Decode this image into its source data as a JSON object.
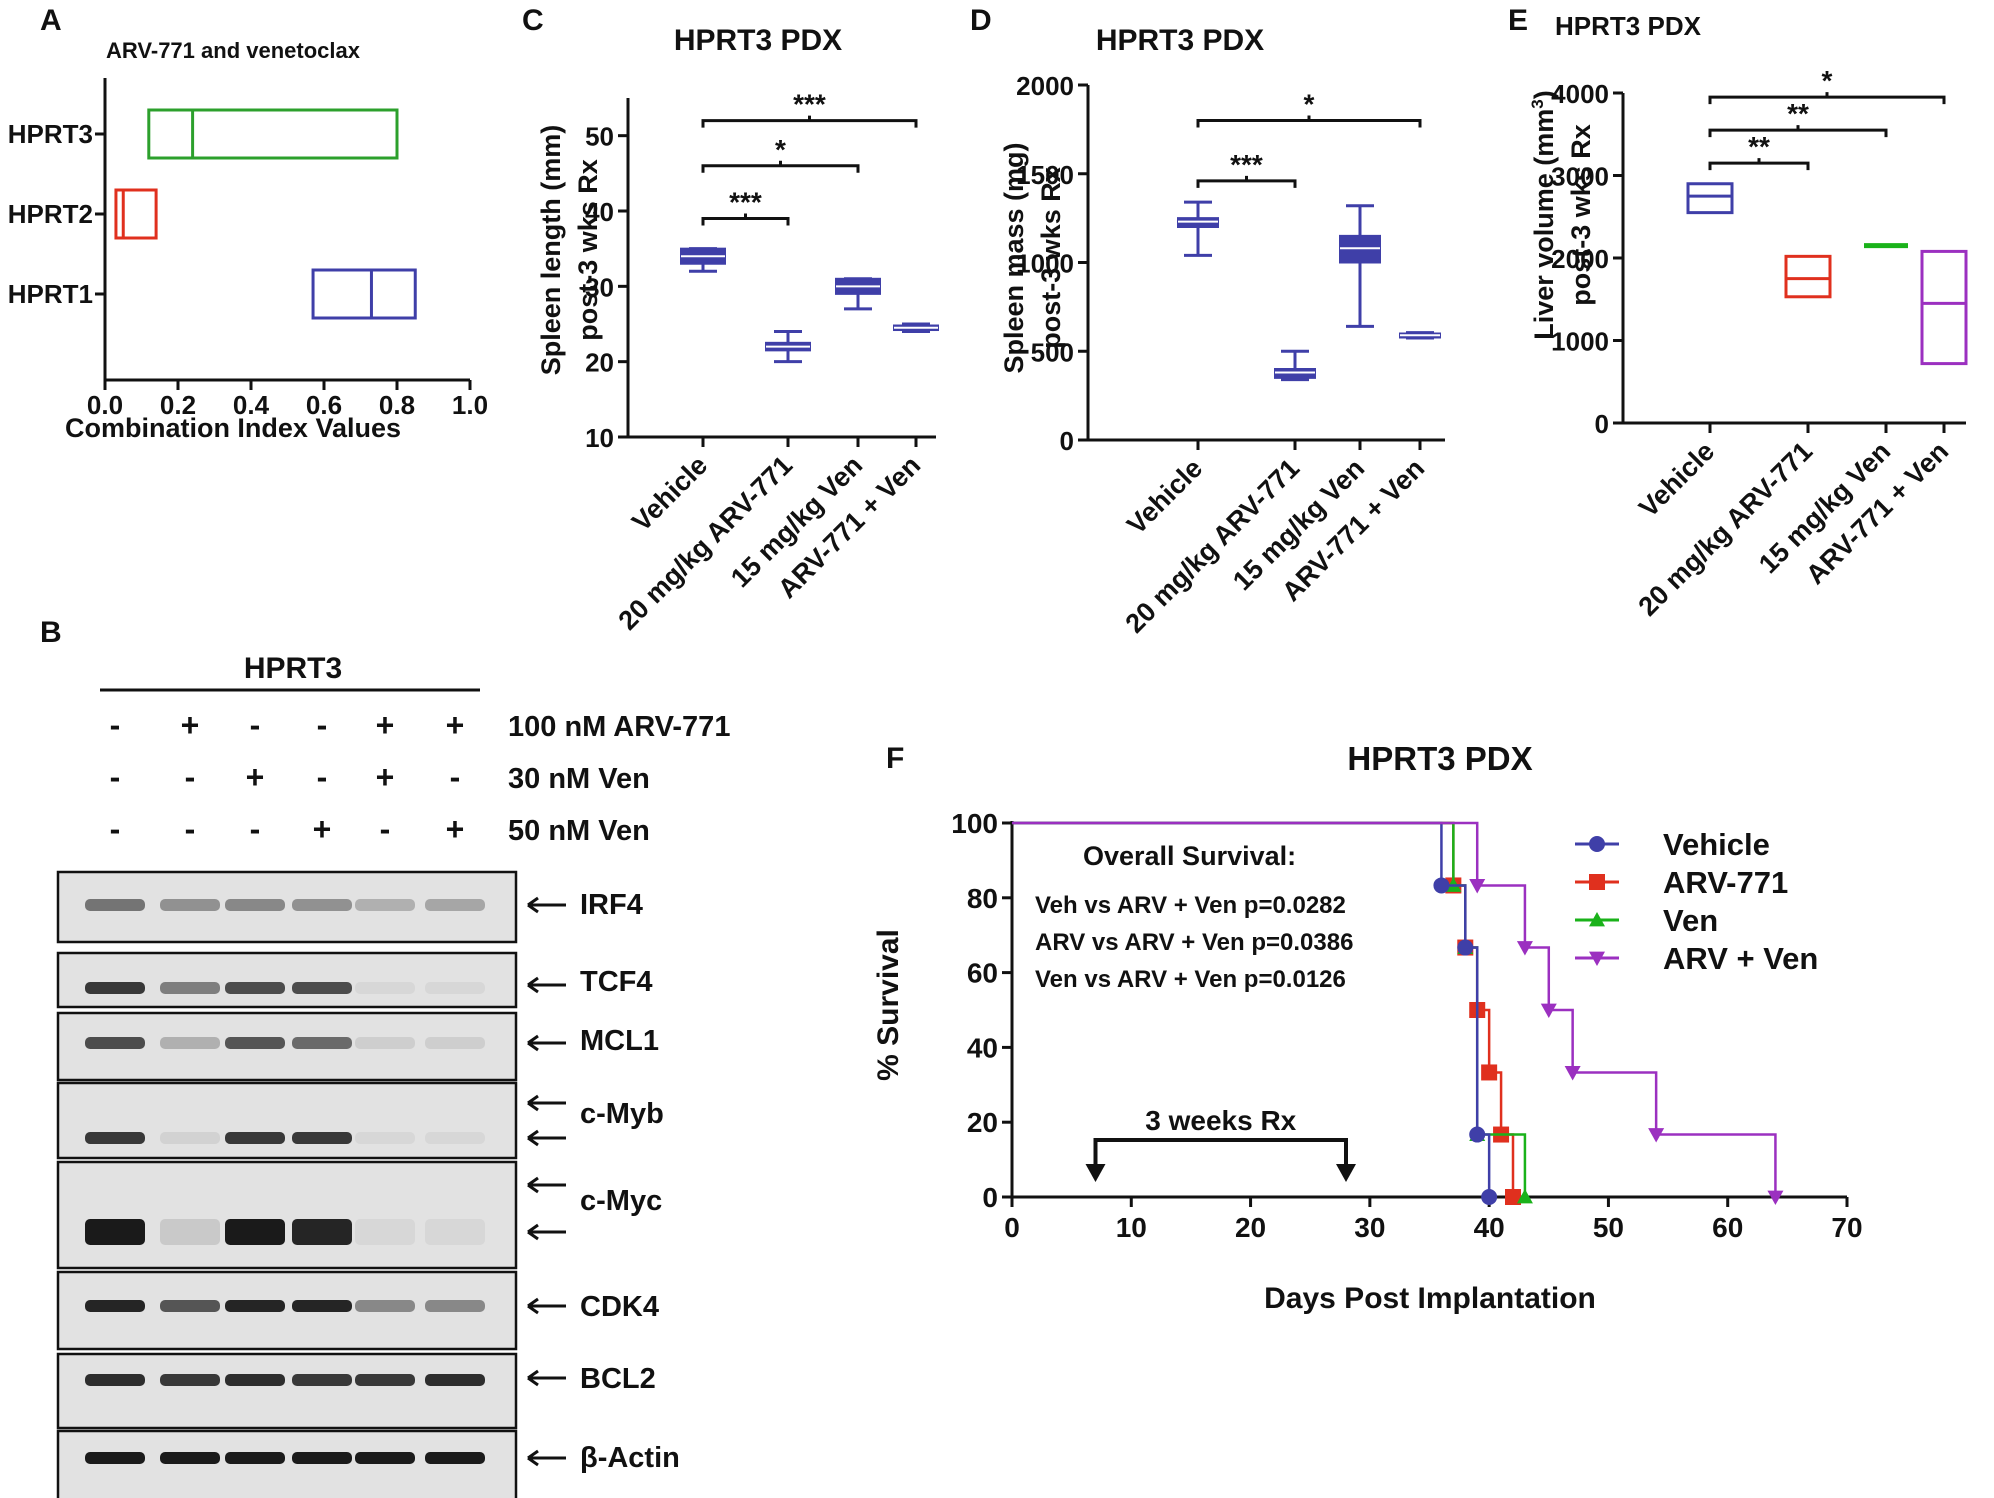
{
  "chart_data": [
    {
      "panel": "A",
      "type": "floating-box",
      "title": "ARV-771 and venetoclax",
      "xlabel": "Combination Index Values",
      "xlim": [
        0.0,
        1.0
      ],
      "xticks": [
        "0.0",
        "0.2",
        "0.4",
        "0.6",
        "0.8",
        "1.0"
      ],
      "categories": [
        "HPRT3",
        "HPRT2",
        "HPRT1"
      ],
      "boxes": [
        {
          "category": "HPRT3",
          "min": 0.12,
          "line": 0.24,
          "max": 0.8,
          "color": "#2ca02c"
        },
        {
          "category": "HPRT2",
          "min": 0.03,
          "line": 0.05,
          "max": 0.14,
          "color": "#e0301e"
        },
        {
          "category": "HPRT1",
          "min": 0.57,
          "line": 0.73,
          "max": 0.85,
          "color": "#3f3fa8"
        }
      ]
    },
    {
      "panel": "C",
      "type": "box",
      "title": "HPRT3 PDX",
      "ylabel_line1": "Spleen length (mm)",
      "ylabel_line2": "post-3 wks  Rx",
      "ylim": [
        10,
        55
      ],
      "yticks": [
        "10",
        "20",
        "30",
        "40",
        "50"
      ],
      "categories": [
        "Vehicle",
        "20 mg/kg ARV-771",
        "15 mg/kg Ven",
        "ARV-771 + Ven"
      ],
      "boxes": [
        {
          "min": 32,
          "q1": 33,
          "median": 34,
          "q3": 35,
          "max": 35
        },
        {
          "min": 20,
          "q1": 21.5,
          "median": 22,
          "q3": 22.5,
          "max": 24
        },
        {
          "min": 27,
          "q1": 29,
          "median": 30,
          "q3": 31,
          "max": 31
        },
        {
          "min": 24,
          "q1": 24.2,
          "median": 24.5,
          "q3": 24.8,
          "max": 25
        }
      ],
      "brackets": [
        {
          "text": "***",
          "from": 0,
          "to": 1,
          "y": 39
        },
        {
          "text": "*",
          "from": 0,
          "to": 2,
          "y": 46
        },
        {
          "text": "***",
          "from": 0,
          "to": 3,
          "y": 52
        }
      ]
    },
    {
      "panel": "D",
      "type": "box",
      "title": "HPRT3 PDX",
      "ylabel_line1": "Spleen mass (mg)",
      "ylabel_line2": "post-3 wks Rx",
      "ylim": [
        0,
        2000
      ],
      "yticks": [
        "0",
        "500",
        "1000",
        "1500",
        "2000"
      ],
      "categories": [
        "Vehicle",
        "20 mg/kg ARV-771",
        "15 mg/kg Ven",
        "ARV-771 + Ven"
      ],
      "boxes": [
        {
          "min": 1040,
          "q1": 1200,
          "median": 1230,
          "q3": 1250,
          "max": 1340
        },
        {
          "min": 340,
          "q1": 350,
          "median": 380,
          "q3": 400,
          "max": 500
        },
        {
          "min": 640,
          "q1": 1000,
          "median": 1080,
          "q3": 1150,
          "max": 1320
        },
        {
          "min": 575,
          "q1": 580,
          "median": 590,
          "q3": 600,
          "max": 605
        }
      ],
      "brackets": [
        {
          "text": "***",
          "from": 0,
          "to": 1,
          "y": 1460
        },
        {
          "text": "*",
          "from": 0,
          "to": 3,
          "y": 1800
        }
      ]
    },
    {
      "panel": "E",
      "type": "floating-box",
      "title": "HPRT3 PDX",
      "ylabel_line1": "Liver volume (mm",
      "ylabel_sup": "3",
      "ylabel_tail": ")",
      "ylabel_line2": "post-3 wks Rx",
      "ylim": [
        0,
        4000
      ],
      "yticks": [
        "0",
        "1000",
        "2000",
        "3000",
        "4000"
      ],
      "categories": [
        "Vehicle",
        "20 mg/kg ARV-771",
        "15 mg/kg Ven",
        "ARV-771 + Ven"
      ],
      "boxes": [
        {
          "min": 2550,
          "line": 2750,
          "max": 2900,
          "color": "#3f3fa8"
        },
        {
          "min": 1530,
          "line": 1750,
          "max": 2020,
          "color": "#e0301e"
        },
        {
          "min": 2130,
          "line": 2150,
          "max": 2150,
          "color": "#1ab21a"
        },
        {
          "min": 720,
          "line": 1450,
          "max": 2080,
          "color": "#9b30c0"
        }
      ],
      "brackets": [
        {
          "text": "**",
          "from": 0,
          "to": 1,
          "y": 3150
        },
        {
          "text": "**",
          "from": 0,
          "to": 2,
          "y": 3550
        },
        {
          "text": "*",
          "from": 0,
          "to": 3,
          "y": 3950
        }
      ]
    },
    {
      "panel": "F",
      "type": "line",
      "title": "HPRT3 PDX",
      "xlabel": "Days Post Implantation",
      "ylabel": "% Survival",
      "xlim": [
        0,
        70
      ],
      "ylim": [
        0,
        100
      ],
      "xticks": [
        "0",
        "10",
        "20",
        "30",
        "40",
        "50",
        "60",
        "70"
      ],
      "yticks": [
        "0",
        "20",
        "40",
        "60",
        "80",
        "100"
      ],
      "legend_position": "top-right",
      "annotation_title": "Overall  Survival:",
      "annotations": [
        "Veh vs ARV + Ven p=0.0282",
        "ARV  vs ARV + Ven p=0.0386",
        "Ven vs ARV + Ven  p=0.0126"
      ],
      "rx_label": "3 weeks Rx",
      "rx_range": [
        7,
        28
      ],
      "series": [
        {
          "name": "Vehicle",
          "color": "#3f3fa8",
          "marker": "circle",
          "steps": [
            [
              0,
              100
            ],
            [
              36,
              83.3
            ],
            [
              38,
              66.7
            ],
            [
              39,
              16.7
            ],
            [
              40,
              0
            ]
          ],
          "marks": [
            [
              36,
              83.3
            ],
            [
              38,
              66.7
            ],
            [
              39,
              16.7
            ],
            [
              40,
              0
            ]
          ]
        },
        {
          "name": "ARV-771",
          "color": "#e0301e",
          "marker": "square",
          "steps": [
            [
              0,
              100
            ],
            [
              37,
              83.3
            ],
            [
              38,
              66.7
            ],
            [
              39,
              50
            ],
            [
              40,
              33.3
            ],
            [
              41,
              16.7
            ],
            [
              42,
              0
            ]
          ],
          "marks": [
            [
              37,
              83.3
            ],
            [
              38,
              66.7
            ],
            [
              39,
              50
            ],
            [
              40,
              33.3
            ],
            [
              41,
              16.7
            ],
            [
              42,
              0
            ]
          ]
        },
        {
          "name": "Ven",
          "color": "#1ab21a",
          "marker": "triangle-up",
          "steps": [
            [
              0,
              100
            ],
            [
              37,
              83.3
            ],
            [
              38,
              66.7
            ],
            [
              39,
              16.7
            ],
            [
              43,
              0
            ]
          ],
          "marks": [
            [
              37,
              83.3
            ],
            [
              38,
              66.7
            ],
            [
              39,
              16.7
            ],
            [
              43,
              0
            ]
          ]
        },
        {
          "name": "ARV + Ven",
          "color": "#9b30c0",
          "marker": "triangle-down",
          "steps": [
            [
              0,
              100
            ],
            [
              39,
              83.3
            ],
            [
              43,
              66.7
            ],
            [
              45,
              50
            ],
            [
              47,
              33.3
            ],
            [
              54,
              16.7
            ],
            [
              64,
              0
            ]
          ],
          "marks": [
            [
              39,
              83.3
            ],
            [
              43,
              66.7
            ],
            [
              45,
              50
            ],
            [
              47,
              33.3
            ],
            [
              54,
              16.7
            ],
            [
              64,
              0
            ]
          ]
        }
      ]
    }
  ],
  "panel_labels": {
    "a": "A",
    "b": "B",
    "c": "C",
    "d": "D",
    "e": "E",
    "f": "F"
  },
  "blot": {
    "cell_line": "HPRT3",
    "treatments": [
      {
        "label": "100 nM ARV-771",
        "signs": [
          "-",
          "+",
          "-",
          "-",
          "+",
          "+"
        ]
      },
      {
        "label": "30 nM Ven",
        "signs": [
          "-",
          "-",
          "+",
          "-",
          "+",
          "-"
        ]
      },
      {
        "label": "50 nM Ven",
        "signs": [
          "-",
          "-",
          "-",
          "+",
          "-",
          "+"
        ]
      }
    ],
    "proteins": [
      {
        "name": "IRF4",
        "intensity": [
          0.55,
          0.4,
          0.45,
          0.4,
          0.25,
          0.3
        ]
      },
      {
        "name": "TCF4",
        "intensity": [
          0.85,
          0.5,
          0.75,
          0.75,
          0.05,
          0.05
        ]
      },
      {
        "name": "MCL1",
        "intensity": [
          0.75,
          0.25,
          0.7,
          0.6,
          0.1,
          0.1
        ]
      },
      {
        "name": "c-Myb",
        "intensity": [
          0.85,
          0.08,
          0.85,
          0.85,
          0.05,
          0.05
        ]
      },
      {
        "name": "c-Myc",
        "intensity": [
          1.0,
          0.12,
          1.0,
          0.95,
          0.05,
          0.05
        ]
      },
      {
        "name": "CDK4",
        "intensity": [
          0.95,
          0.7,
          0.95,
          0.95,
          0.45,
          0.45
        ]
      },
      {
        "name": "BCL2",
        "intensity": [
          0.9,
          0.85,
          0.9,
          0.85,
          0.85,
          0.9
        ]
      },
      {
        "name": "β-Actin",
        "intensity": [
          1.0,
          1.0,
          1.0,
          1.0,
          1.0,
          1.0
        ]
      }
    ]
  }
}
